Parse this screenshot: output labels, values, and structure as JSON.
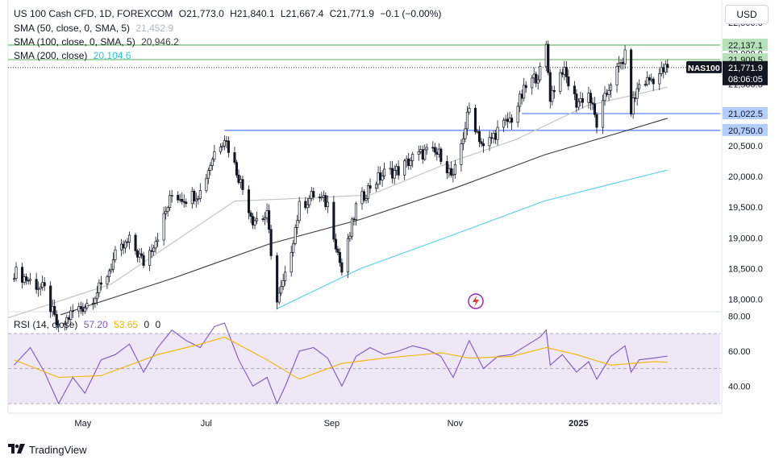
{
  "header": {
    "symbol_title": "US 100 Cash CFD, 1D, FOREXCOM",
    "open": "O21,773.0",
    "high": "H21,840.1",
    "low": "L21,667.4",
    "close": "C21,771.9",
    "change": "−0.1 (−0.00%)",
    "currency_button": "USD"
  },
  "legend": {
    "sma50_label": "SMA (50, close, 0, SMA, 5)",
    "sma50_value": "21,452.9",
    "sma100_label": "SMA (100, close, 0, SMA, 5)",
    "sma100_value": "20,946.2",
    "sma200_label": "SMA (200, close)",
    "sma200_value": "20,104.6",
    "rsi_label": "RSI (14, close)",
    "rsi_value": "57.20",
    "rsi_ma_value": "53.65",
    "rsi_extra_1": "0",
    "rsi_extra_2": "0"
  },
  "colors": {
    "up": "#131722",
    "down": "#131722",
    "sma50": "#c4c4c4",
    "sma100": "#3a3a3a",
    "sma200": "#5fd3e8",
    "green_level": "#4caf50",
    "blue_level": "#2962ff",
    "rsi_line": "#7e57c2",
    "rsi_ma": "#f4b400",
    "rsi_band": "#ede7f6"
  },
  "chart_data": [
    {
      "type": "candlestick",
      "title": "US 100 Cash CFD, 1D, FOREXCOM",
      "y_ticks": [
        22500,
        22000,
        21500,
        21000,
        20500,
        20000,
        19500,
        19000,
        18500,
        18000
      ],
      "y_tick_labels": [
        "22,500.0",
        "22,000.0",
        "21,500.0",
        "21,000.0",
        "20,500.0",
        "20,000.0",
        "19,500.0",
        "19,000.0",
        "18,500.0",
        "18,000.0"
      ],
      "ylim": [
        17800,
        22870
      ],
      "x_ticks": [
        "May",
        "Jul",
        "Sep",
        "Nov",
        "2025"
      ],
      "x_tick_dates": [
        "2024-05-01",
        "2024-07-01",
        "2024-09-01",
        "2024-11-01",
        "2025-01-01"
      ],
      "x_tick_bold": [
        false,
        false,
        false,
        false,
        true
      ],
      "xlim": [
        "2024-03-25",
        "2025-03-12"
      ],
      "last_date": "2025-02-14",
      "horizontal_levels": [
        {
          "value": 22137.1,
          "label": "22,137.1",
          "color": "#4caf50",
          "label_bg": "#b7e1b9"
        },
        {
          "value": 21900.5,
          "label": "21,900.5",
          "color": "#4caf50",
          "label_bg": "#b7e1b9"
        },
        {
          "value": 21022.5,
          "label": "21,022.5",
          "color": "#2962ff",
          "label_bg": "#b3cdfd",
          "from_date": "2024-12-04"
        },
        {
          "value": 20750.0,
          "label": "20,750.0",
          "color": "#2962ff",
          "label_bg": "#b3cdfd",
          "from_date": "2024-07-10"
        }
      ],
      "last_price": {
        "value": 21771.9,
        "label": "21,771.9",
        "countdown": "08:06:05",
        "symbol_tag": "NAS100"
      },
      "key_points": [
        {
          "date": "2024-03-28",
          "close": 18450
        },
        {
          "date": "2024-04-05",
          "close": 18300
        },
        {
          "date": "2024-04-12",
          "close": 18150
        },
        {
          "date": "2024-04-19",
          "close": 17500
        },
        {
          "date": "2024-04-26",
          "close": 17800
        },
        {
          "date": "2024-05-02",
          "close": 17900
        },
        {
          "date": "2024-05-10",
          "close": 18200
        },
        {
          "date": "2024-05-17",
          "close": 18700
        },
        {
          "date": "2024-05-24",
          "close": 18950
        },
        {
          "date": "2024-05-31",
          "close": 18600
        },
        {
          "date": "2024-06-07",
          "close": 19050
        },
        {
          "date": "2024-06-14",
          "close": 19700
        },
        {
          "date": "2024-06-21",
          "close": 19650
        },
        {
          "date": "2024-06-28",
          "close": 19750
        },
        {
          "date": "2024-07-05",
          "close": 20400
        },
        {
          "date": "2024-07-10",
          "close": 20650
        },
        {
          "date": "2024-07-17",
          "close": 20000
        },
        {
          "date": "2024-07-24",
          "close": 19300
        },
        {
          "date": "2024-07-31",
          "close": 19350
        },
        {
          "date": "2024-08-05",
          "close": 17950
        },
        {
          "date": "2024-08-09",
          "close": 18350
        },
        {
          "date": "2024-08-16",
          "close": 19500
        },
        {
          "date": "2024-08-23",
          "close": 19700
        },
        {
          "date": "2024-08-30",
          "close": 19550
        },
        {
          "date": "2024-09-06",
          "close": 18450
        },
        {
          "date": "2024-09-13",
          "close": 19500
        },
        {
          "date": "2024-09-20",
          "close": 19850
        },
        {
          "date": "2024-09-27",
          "close": 20050
        },
        {
          "date": "2024-10-04",
          "close": 20100
        },
        {
          "date": "2024-10-11",
          "close": 20300
        },
        {
          "date": "2024-10-18",
          "close": 20400
        },
        {
          "date": "2024-10-25",
          "close": 20350
        },
        {
          "date": "2024-10-31",
          "close": 19950
        },
        {
          "date": "2024-11-08",
          "close": 21100
        },
        {
          "date": "2024-11-15",
          "close": 20450
        },
        {
          "date": "2024-11-22",
          "close": 20750
        },
        {
          "date": "2024-11-29",
          "close": 20950
        },
        {
          "date": "2024-12-06",
          "close": 21450
        },
        {
          "date": "2024-12-13",
          "close": 21700
        },
        {
          "date": "2024-12-16",
          "close": 22100
        },
        {
          "date": "2024-12-18",
          "close": 21300
        },
        {
          "date": "2024-12-24",
          "close": 21750
        },
        {
          "date": "2024-12-31",
          "close": 21200
        },
        {
          "date": "2025-01-06",
          "close": 21350
        },
        {
          "date": "2025-01-10",
          "close": 20850
        },
        {
          "date": "2025-01-17",
          "close": 21550
        },
        {
          "date": "2025-01-24",
          "close": 21950
        },
        {
          "date": "2025-01-27",
          "close": 21100
        },
        {
          "date": "2025-01-31",
          "close": 21500
        },
        {
          "date": "2025-02-07",
          "close": 21600
        },
        {
          "date": "2025-02-14",
          "close": 21771.9
        }
      ],
      "series": [
        {
          "name": "SMA (50, close, 0, SMA, 5)",
          "color": "#c4c4c4",
          "points": [
            [
              "2024-03-25",
              17700
            ],
            [
              "2024-05-15",
              18250
            ],
            [
              "2024-07-15",
              19600
            ],
            [
              "2024-08-20",
              19650
            ],
            [
              "2024-09-20",
              19700
            ],
            [
              "2024-10-31",
              20250
            ],
            [
              "2024-12-01",
              20600
            ],
            [
              "2025-01-05",
              21150
            ],
            [
              "2025-02-14",
              21452.9
            ]
          ]
        },
        {
          "name": "SMA (100, close, 0, SMA, 5)",
          "color": "#3a3a3a",
          "points": [
            [
              "2024-04-20",
              17750
            ],
            [
              "2024-06-15",
              18350
            ],
            [
              "2024-08-01",
              18900
            ],
            [
              "2024-09-15",
              19300
            ],
            [
              "2024-10-31",
              19800
            ],
            [
              "2024-12-15",
              20350
            ],
            [
              "2025-01-20",
              20700
            ],
            [
              "2025-02-14",
              20946.2
            ]
          ]
        },
        {
          "name": "SMA (200, close)",
          "color": "#5fd3e8",
          "points": [
            [
              "2024-08-05",
              17850
            ],
            [
              "2024-09-15",
              18500
            ],
            [
              "2024-10-31",
              19050
            ],
            [
              "2024-12-15",
              19600
            ],
            [
              "2025-01-20",
              19900
            ],
            [
              "2025-02-14",
              20104.6
            ]
          ]
        }
      ]
    },
    {
      "type": "line",
      "title": "RSI (14, close)",
      "y_ticks": [
        80,
        60,
        40
      ],
      "y_tick_labels": [
        "80.00",
        "60.00",
        "40.00"
      ],
      "ylim": [
        25,
        82
      ],
      "band": [
        30,
        70
      ],
      "midline": 50,
      "series": [
        {
          "name": "RSI (14, close)",
          "color": "#7e57c2",
          "points": [
            [
              "2024-03-28",
              52
            ],
            [
              "2024-04-05",
              62
            ],
            [
              "2024-04-12",
              48
            ],
            [
              "2024-04-19",
              30
            ],
            [
              "2024-04-26",
              45
            ],
            [
              "2024-05-02",
              36
            ],
            [
              "2024-05-10",
              55
            ],
            [
              "2024-05-17",
              58
            ],
            [
              "2024-05-24",
              64
            ],
            [
              "2024-05-31",
              48
            ],
            [
              "2024-06-07",
              62
            ],
            [
              "2024-06-14",
              72
            ],
            [
              "2024-06-21",
              66
            ],
            [
              "2024-06-28",
              62
            ],
            [
              "2024-07-05",
              74
            ],
            [
              "2024-07-10",
              76
            ],
            [
              "2024-07-17",
              55
            ],
            [
              "2024-07-24",
              40
            ],
            [
              "2024-07-31",
              45
            ],
            [
              "2024-08-05",
              30
            ],
            [
              "2024-08-09",
              40
            ],
            [
              "2024-08-16",
              60
            ],
            [
              "2024-08-23",
              62
            ],
            [
              "2024-08-30",
              56
            ],
            [
              "2024-09-06",
              40
            ],
            [
              "2024-09-13",
              57
            ],
            [
              "2024-09-20",
              62
            ],
            [
              "2024-09-27",
              58
            ],
            [
              "2024-10-04",
              60
            ],
            [
              "2024-10-11",
              63
            ],
            [
              "2024-10-18",
              61
            ],
            [
              "2024-10-25",
              57
            ],
            [
              "2024-10-31",
              45
            ],
            [
              "2024-11-08",
              66
            ],
            [
              "2024-11-15",
              50
            ],
            [
              "2024-11-22",
              57
            ],
            [
              "2024-11-29",
              58
            ],
            [
              "2024-12-06",
              63
            ],
            [
              "2024-12-13",
              68
            ],
            [
              "2024-12-16",
              72
            ],
            [
              "2024-12-18",
              52
            ],
            [
              "2024-12-24",
              58
            ],
            [
              "2024-12-31",
              48
            ],
            [
              "2025-01-06",
              54
            ],
            [
              "2025-01-10",
              44
            ],
            [
              "2025-01-17",
              57
            ],
            [
              "2025-01-24",
              63
            ],
            [
              "2025-01-27",
              48
            ],
            [
              "2025-01-31",
              55
            ],
            [
              "2025-02-07",
              56
            ],
            [
              "2025-02-14",
              57.2
            ]
          ]
        },
        {
          "name": "MA",
          "color": "#f4b400",
          "points": [
            [
              "2024-03-28",
              55
            ],
            [
              "2024-04-19",
              45
            ],
            [
              "2024-05-10",
              46
            ],
            [
              "2024-06-07",
              58
            ],
            [
              "2024-06-28",
              64
            ],
            [
              "2024-07-10",
              68
            ],
            [
              "2024-07-31",
              55
            ],
            [
              "2024-08-16",
              44
            ],
            [
              "2024-09-06",
              53
            ],
            [
              "2024-09-27",
              56
            ],
            [
              "2024-10-25",
              59
            ],
            [
              "2024-11-08",
              56
            ],
            [
              "2024-11-29",
              57
            ],
            [
              "2024-12-16",
              62
            ],
            [
              "2024-12-31",
              58
            ],
            [
              "2025-01-17",
              52
            ],
            [
              "2025-02-07",
              54
            ],
            [
              "2025-02-14",
              53.65
            ]
          ]
        }
      ]
    }
  ]
}
